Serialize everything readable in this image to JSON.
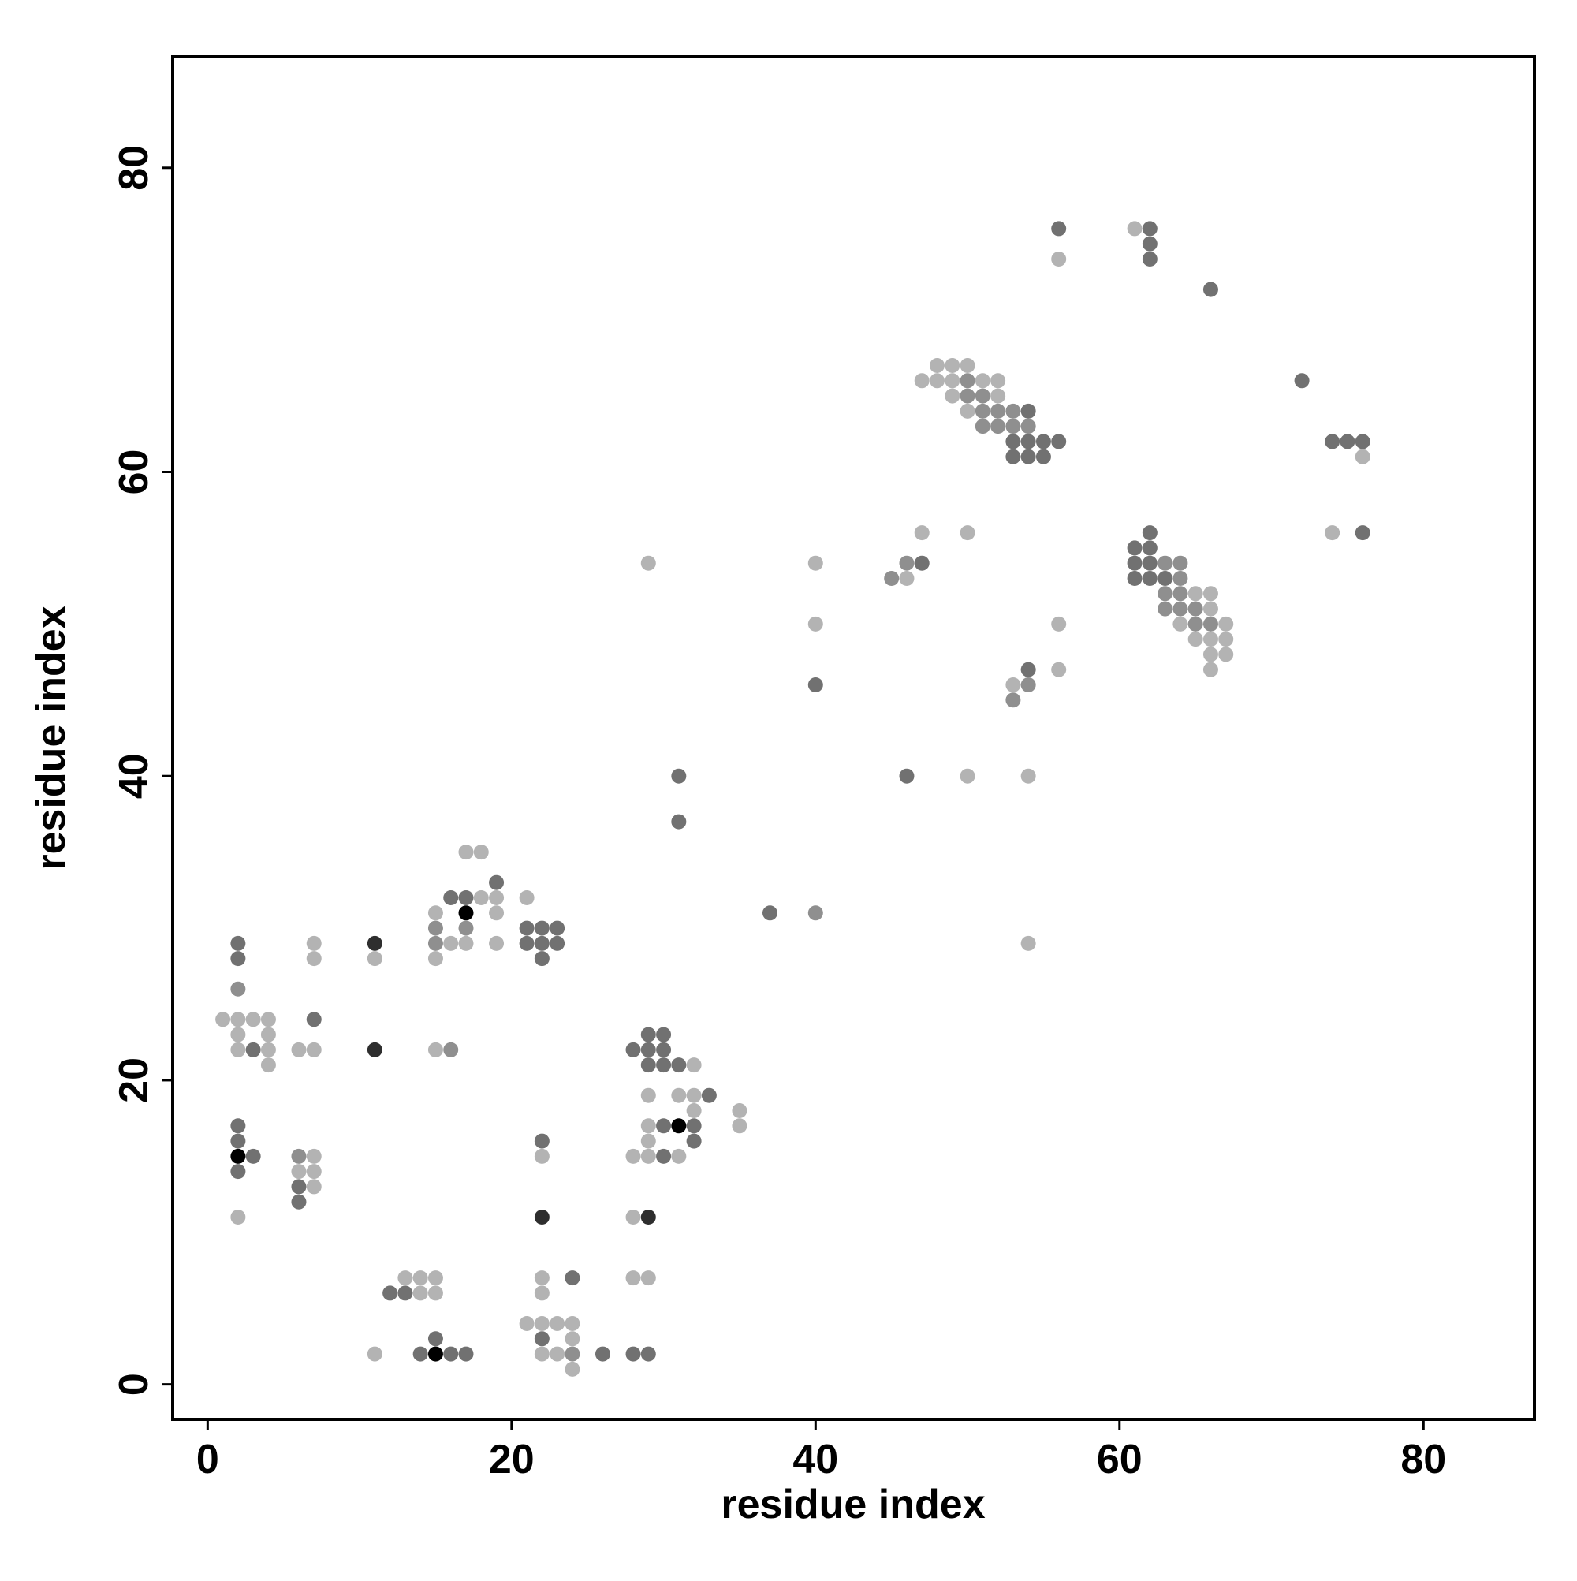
{
  "chart_data": {
    "type": "scatter",
    "x_label": "residue index",
    "y_label": "residue index",
    "xlim": [
      -2.3,
      87.3
    ],
    "ylim": [
      -2.3,
      87.3
    ],
    "xticks": [
      0,
      20,
      40,
      60,
      80
    ],
    "yticks": [
      0,
      20,
      40,
      60,
      80
    ],
    "grid": false,
    "series": [
      {
        "color": "#b3b3b3",
        "x": [
          61,
          56,
          48,
          49,
          50,
          47,
          48,
          49,
          51,
          52,
          49,
          52,
          50,
          76,
          47,
          50,
          74,
          29,
          40,
          46,
          65,
          66,
          66,
          40,
          56,
          64,
          67,
          65,
          66,
          67,
          66,
          67,
          56,
          66,
          53,
          50,
          54,
          17,
          18,
          18,
          19,
          21,
          15,
          19,
          7,
          16,
          17,
          19,
          54,
          7,
          11,
          15,
          1,
          2,
          3,
          4,
          2,
          4,
          2,
          4,
          6,
          7,
          15,
          4,
          32,
          29,
          31,
          32,
          32,
          35,
          29,
          35,
          29,
          7,
          22,
          28,
          29,
          31,
          6,
          7,
          7,
          2,
          28,
          13,
          14,
          15,
          22,
          28,
          29,
          14,
          15,
          22,
          21,
          22,
          23,
          24,
          24,
          11,
          22,
          23,
          24
        ],
        "values": [
          76,
          74,
          67,
          67,
          67,
          66,
          66,
          66,
          66,
          66,
          65,
          65,
          64,
          61,
          56,
          56,
          56,
          54,
          54,
          53,
          52,
          52,
          51,
          50,
          50,
          50,
          50,
          49,
          49,
          49,
          48,
          48,
          47,
          47,
          46,
          40,
          40,
          35,
          35,
          32,
          32,
          32,
          31,
          31,
          29,
          29,
          29,
          29,
          29,
          28,
          28,
          28,
          24,
          24,
          24,
          24,
          23,
          23,
          22,
          22,
          22,
          22,
          22,
          21,
          21,
          19,
          19,
          19,
          18,
          18,
          17,
          17,
          16,
          15,
          15,
          15,
          15,
          15,
          14,
          14,
          13,
          11,
          11,
          7,
          7,
          7,
          7,
          7,
          7,
          6,
          6,
          6,
          4,
          4,
          4,
          4,
          3,
          2,
          2,
          2,
          1
        ]
      },
      {
        "color": "#8f8f8f",
        "x": [
          50,
          50,
          51,
          51,
          52,
          53,
          51,
          52,
          53,
          54,
          46,
          63,
          64,
          45,
          64,
          63,
          64,
          63,
          64,
          65,
          65,
          66,
          54,
          53,
          40,
          15,
          17,
          15,
          2,
          16,
          6,
          24
        ],
        "values": [
          66,
          65,
          65,
          64,
          64,
          64,
          63,
          63,
          63,
          63,
          54,
          54,
          54,
          53,
          53,
          52,
          52,
          51,
          51,
          51,
          50,
          50,
          46,
          45,
          31,
          30,
          30,
          29,
          26,
          22,
          15,
          2
        ]
      },
      {
        "color": "#717171",
        "x": [
          56,
          62,
          62,
          62,
          66,
          72,
          54,
          53,
          54,
          55,
          56,
          74,
          75,
          76,
          53,
          54,
          55,
          62,
          76,
          61,
          62,
          47,
          61,
          62,
          61,
          62,
          63,
          54,
          40,
          31,
          46,
          31,
          19,
          16,
          17,
          37,
          21,
          22,
          23,
          2,
          21,
          22,
          23,
          2,
          22,
          7,
          29,
          30,
          3,
          28,
          29,
          30,
          29,
          30,
          31,
          33,
          2,
          30,
          32,
          2,
          22,
          32,
          3,
          30,
          2,
          6,
          6,
          24,
          12,
          13,
          15,
          22,
          14,
          16,
          17,
          26,
          28,
          29
        ],
        "values": [
          76,
          76,
          75,
          74,
          72,
          66,
          64,
          62,
          62,
          62,
          62,
          62,
          62,
          62,
          61,
          61,
          61,
          56,
          56,
          55,
          55,
          54,
          54,
          54,
          53,
          53,
          53,
          47,
          46,
          40,
          40,
          37,
          33,
          32,
          32,
          31,
          30,
          30,
          30,
          29,
          29,
          29,
          29,
          28,
          28,
          24,
          23,
          23,
          22,
          22,
          22,
          22,
          21,
          21,
          21,
          19,
          17,
          17,
          17,
          16,
          16,
          16,
          15,
          15,
          14,
          13,
          12,
          7,
          6,
          6,
          3,
          3,
          2,
          2,
          2,
          2,
          2,
          2
        ]
      },
      {
        "color": "#2e2e2e",
        "x": [
          11,
          11,
          22,
          29
        ],
        "values": [
          29,
          22,
          11,
          11
        ]
      },
      {
        "color": "#000000",
        "x": [
          15,
          2,
          31,
          17
        ],
        "values": [
          2,
          15,
          17,
          31
        ]
      }
    ]
  }
}
